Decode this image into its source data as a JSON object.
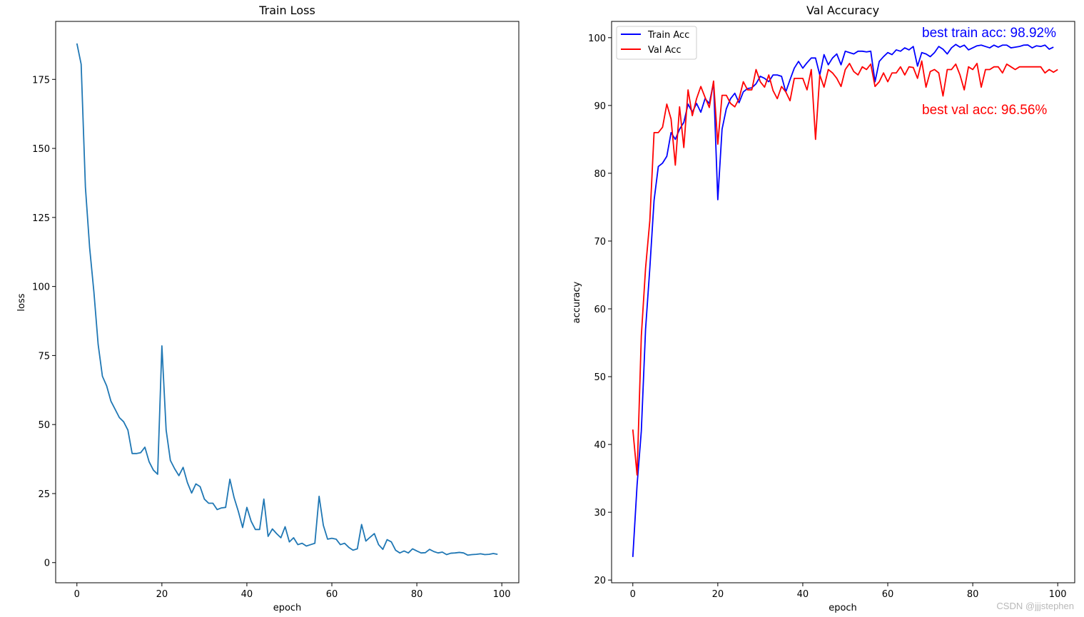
{
  "watermark": "CSDN @jjjstephen",
  "chart_data": [
    {
      "type": "line",
      "title": "Train Loss",
      "xlabel": "epoch",
      "ylabel": "loss",
      "xlim": [
        -5,
        104
      ],
      "ylim": [
        -7.3,
        196
      ],
      "xticks": [
        0,
        20,
        40,
        60,
        80,
        100
      ],
      "yticks": [
        0,
        25,
        50,
        75,
        100,
        125,
        150,
        175
      ],
      "series": [
        {
          "name": "loss",
          "color": "#1f77b4",
          "x_start": 0,
          "values": [
            188,
            180.5,
            136,
            114,
            98,
            79,
            67.5,
            64,
            58.5,
            55.5,
            52.5,
            51,
            48,
            39.5,
            39.5,
            39.8,
            41.8,
            36.5,
            33.5,
            32,
            78.5,
            48,
            37,
            34,
            31.5,
            34.5,
            29,
            25.2,
            28.5,
            27.5,
            23,
            21.5,
            21.5,
            19.2,
            19.8,
            20,
            30.2,
            23.5,
            18.5,
            12.7,
            20,
            15,
            12,
            12,
            23,
            9.5,
            12.2,
            10.5,
            9,
            13,
            7.5,
            9,
            6.5,
            7,
            6,
            6.5,
            7,
            24,
            13.5,
            8.5,
            8.8,
            8.5,
            6.5,
            7,
            5.5,
            4.5,
            5,
            13.8,
            7.8,
            9.2,
            10.5,
            6.5,
            4.8,
            8.3,
            7.5,
            4.5,
            3.5,
            4.2,
            3.5,
            5,
            4.2,
            3.5,
            3.6,
            4.8,
            4,
            3.5,
            3.8,
            2.9,
            3.4,
            3.5,
            3.7,
            3.5,
            2.7,
            2.9,
            3,
            3.2,
            2.9,
            3,
            3.3,
            3
          ]
        }
      ]
    },
    {
      "type": "line",
      "title": "Val Accuracy",
      "xlabel": "epoch",
      "ylabel": "accuracy",
      "xlim": [
        -5,
        104
      ],
      "ylim": [
        19.6,
        102.4
      ],
      "xticks": [
        0,
        20,
        40,
        60,
        80,
        100
      ],
      "yticks": [
        20,
        30,
        40,
        50,
        60,
        70,
        80,
        90,
        100
      ],
      "legend": {
        "position": "upper-left",
        "entries": [
          "Train Acc",
          "Val Acc"
        ]
      },
      "annotations": [
        {
          "text": "best train acc: 98.92%",
          "color": "#0000ff"
        },
        {
          "text": "best val acc: 96.56%",
          "color": "#ff0000"
        }
      ],
      "series": [
        {
          "name": "Train Acc",
          "color": "#0000ff",
          "x_start": 0,
          "values": [
            23.4,
            34,
            42,
            57,
            66,
            76,
            81,
            81.5,
            82.5,
            86,
            85,
            86.5,
            87.5,
            90.2,
            89,
            90.3,
            89,
            91,
            90.3,
            93.4,
            76.1,
            86.5,
            89.5,
            91,
            91.8,
            90.4,
            92,
            92.5,
            92.6,
            93.2,
            94.3,
            94,
            93.5,
            94.5,
            94.5,
            94.3,
            92,
            93.8,
            95.5,
            96.5,
            95.5,
            96.3,
            97,
            97,
            94.5,
            97.5,
            96,
            97,
            97.6,
            96,
            98,
            97.8,
            97.6,
            98,
            98,
            97.9,
            98,
            93.5,
            96.5,
            97.2,
            97.8,
            97.5,
            98.2,
            98,
            98.5,
            98.2,
            98.7,
            95.8,
            97.8,
            97.6,
            97.2,
            97.8,
            98.7,
            98.3,
            97.6,
            98.5,
            99,
            98.6,
            98.9,
            98.2,
            98.5,
            98.8,
            98.9,
            98.7,
            98.5,
            98.9,
            98.6,
            98.9,
            98.9,
            98.5,
            98.6,
            98.7,
            98.9,
            98.92,
            98.5,
            98.8,
            98.7,
            98.9,
            98.3,
            98.6
          ]
        },
        {
          "name": "Val Acc",
          "color": "#ff0000",
          "x_start": 0,
          "values": [
            42.2,
            35.5,
            56,
            66,
            73,
            86,
            86,
            86.8,
            90.2,
            88,
            81.2,
            89.8,
            83.8,
            92.3,
            88.5,
            91,
            92.8,
            91.2,
            89.7,
            93.6,
            84.3,
            91.5,
            91.5,
            90.3,
            89.8,
            91,
            93.5,
            92.3,
            92.3,
            95.3,
            93.5,
            92.7,
            94.5,
            92.2,
            91,
            92.8,
            92,
            90.7,
            94,
            94,
            94,
            92.3,
            95.3,
            85,
            94.5,
            92.7,
            95.3,
            94.8,
            94,
            92.8,
            95.3,
            96.2,
            95,
            94.5,
            95.7,
            95.3,
            96.1,
            92.8,
            93.5,
            94.8,
            93.5,
            94.8,
            94.8,
            95.7,
            94.5,
            95.7,
            95.6,
            94,
            96.56,
            92.7,
            95,
            95.3,
            94.8,
            91.4,
            95.3,
            95.3,
            96.1,
            94.5,
            92.3,
            95.7,
            95.3,
            96.2,
            92.7,
            95.3,
            95.3,
            95.7,
            95.7,
            94.8,
            96.1,
            95.7,
            95.3,
            95.7,
            95.7,
            95.7,
            95.7,
            95.7,
            95.7,
            94.8,
            95.3,
            94.9,
            95.3
          ]
        }
      ]
    }
  ]
}
